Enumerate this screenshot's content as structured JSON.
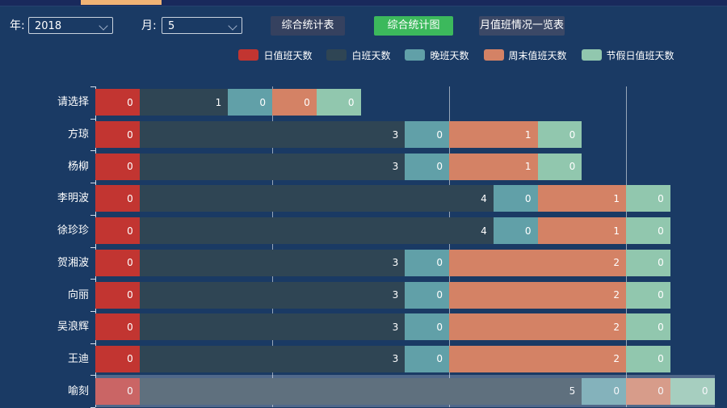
{
  "page": {
    "background": "#1a3a64",
    "top_strip_color": "#19295c",
    "top_strip_accent": "#f0b375"
  },
  "toolbar": {
    "year_label": "年:",
    "year_value": "2018",
    "month_label": "月:",
    "month_value": "5",
    "buttons": [
      {
        "label": "综合统计表",
        "active": false
      },
      {
        "label": "综合统计图",
        "active": true
      },
      {
        "label": "月值班情况一览表",
        "active": false
      }
    ],
    "active_color": "#3cb95c"
  },
  "chart_data": {
    "type": "bar",
    "orientation": "horizontal",
    "stacked": true,
    "grid": true,
    "legend_position": "top",
    "value_label_position": "inside-right",
    "series_names": [
      "日值班天数",
      "白班天数",
      "晚班天数",
      "周末值班天数",
      "节假日值班天数"
    ],
    "series_colors": [
      "#c23531",
      "#2f4554",
      "#61a0a8",
      "#d48265",
      "#91c7ae"
    ],
    "categories": [
      "请选择",
      "方琼",
      "杨柳",
      "李明波",
      "徐珍珍",
      "贺湘波",
      "向丽",
      "吴浪辉",
      "王迪",
      "喻刻"
    ],
    "series": [
      {
        "name": "日值班天数",
        "values": [
          0,
          0,
          0,
          0,
          0,
          0,
          0,
          0,
          0,
          0
        ]
      },
      {
        "name": "白班天数",
        "values": [
          1,
          3,
          3,
          4,
          4,
          3,
          3,
          3,
          3,
          5
        ]
      },
      {
        "name": "晚班天数",
        "values": [
          0,
          0,
          0,
          0,
          0,
          0,
          0,
          0,
          0,
          0
        ]
      },
      {
        "name": "周末值班天数",
        "values": [
          0,
          1,
          1,
          1,
          1,
          2,
          2,
          2,
          2,
          0
        ]
      },
      {
        "name": "节假日值班天数",
        "values": [
          0,
          0,
          0,
          0,
          0,
          0,
          0,
          0,
          0,
          0
        ]
      }
    ],
    "rows": [
      {
        "name": "请选择",
        "values": [
          0,
          1,
          0,
          0,
          0
        ],
        "units": [
          1,
          2,
          1,
          1,
          1
        ],
        "faded": false
      },
      {
        "name": "方琼",
        "values": [
          0,
          3,
          0,
          1,
          0
        ],
        "units": [
          1,
          6,
          1,
          2,
          1
        ],
        "faded": false
      },
      {
        "name": "杨柳",
        "values": [
          0,
          3,
          0,
          1,
          0
        ],
        "units": [
          1,
          6,
          1,
          2,
          1
        ],
        "faded": false
      },
      {
        "name": "李明波",
        "values": [
          0,
          4,
          0,
          1,
          0
        ],
        "units": [
          1,
          8,
          1,
          2,
          1
        ],
        "faded": false
      },
      {
        "name": "徐珍珍",
        "values": [
          0,
          4,
          0,
          1,
          0
        ],
        "units": [
          1,
          8,
          1,
          2,
          1
        ],
        "faded": false
      },
      {
        "name": "贺湘波",
        "values": [
          0,
          3,
          0,
          2,
          0
        ],
        "units": [
          1,
          6,
          1,
          4,
          1
        ],
        "faded": false
      },
      {
        "name": "向丽",
        "values": [
          0,
          3,
          0,
          2,
          0
        ],
        "units": [
          1,
          6,
          1,
          4,
          1
        ],
        "faded": false
      },
      {
        "name": "吴浪辉",
        "values": [
          0,
          3,
          0,
          2,
          0
        ],
        "units": [
          1,
          6,
          1,
          4,
          1
        ],
        "faded": false
      },
      {
        "name": "王迪",
        "values": [
          0,
          3,
          0,
          2,
          0
        ],
        "units": [
          1,
          6,
          1,
          4,
          1
        ],
        "faded": false
      },
      {
        "name": "喻刻",
        "values": [
          0,
          5,
          0,
          0,
          0
        ],
        "units": [
          1,
          10,
          1,
          1,
          1
        ],
        "faded": true
      }
    ],
    "gridline_units": [
      4,
      8,
      12
    ],
    "axis_unit_days": 2
  }
}
